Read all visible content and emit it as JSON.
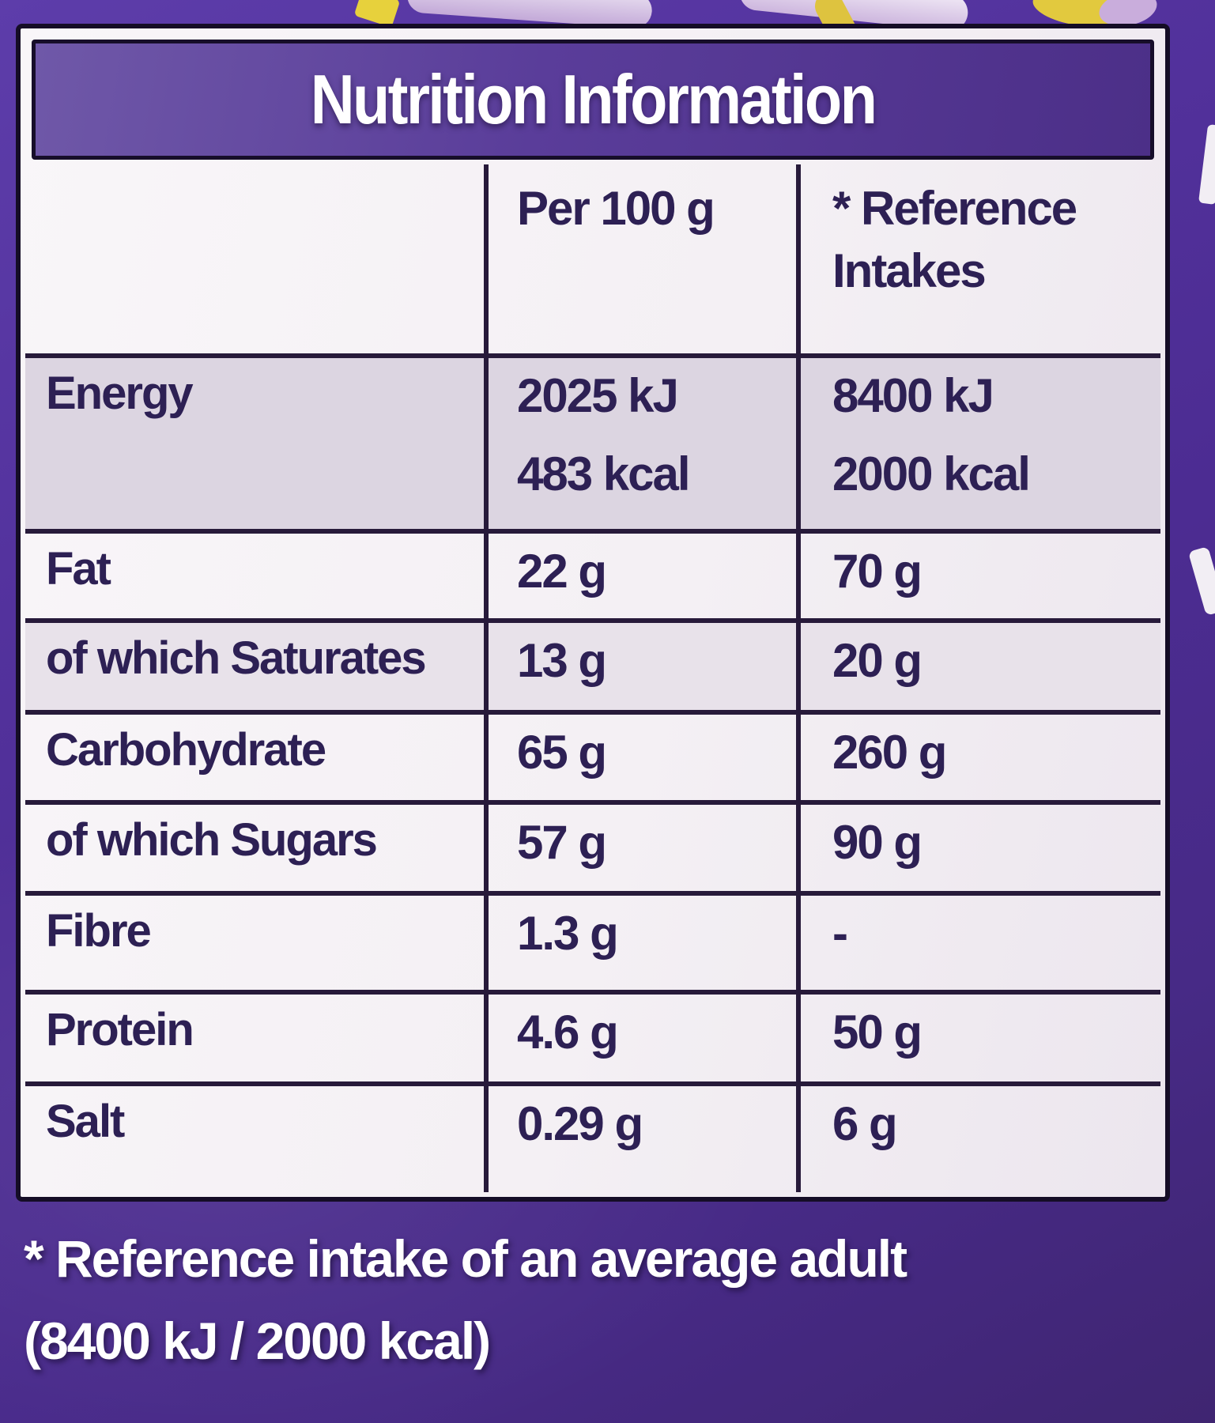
{
  "label": {
    "title": "Nutrition Information",
    "columns": {
      "per100": "Per 100 g",
      "reference": "* Reference Intakes"
    },
    "rows": [
      {
        "label": "Energy",
        "per100": [
          "2025 kJ",
          "483 kcal"
        ],
        "reference": [
          "8400 kJ",
          "2000 kcal"
        ],
        "shaded": true
      },
      {
        "label": "Fat",
        "per100": [
          "22 g"
        ],
        "reference": [
          "70 g"
        ],
        "shaded": false
      },
      {
        "label": "of which Saturates",
        "per100": [
          "13 g"
        ],
        "reference": [
          "20 g"
        ],
        "shaded": true
      },
      {
        "label": "Carbohydrate",
        "per100": [
          "65 g"
        ],
        "reference": [
          "260 g"
        ],
        "shaded": false
      },
      {
        "label": "of which Sugars",
        "per100": [
          "57 g"
        ],
        "reference": [
          "90 g"
        ],
        "shaded": false
      },
      {
        "label": "Fibre",
        "per100": [
          "1.3 g"
        ],
        "reference": [
          "-"
        ],
        "shaded": false
      },
      {
        "label": "Protein",
        "per100": [
          "4.6 g"
        ],
        "reference": [
          "50 g"
        ],
        "shaded": false
      },
      {
        "label": "Salt",
        "per100": [
          "0.29 g"
        ],
        "reference": [
          "6 g"
        ],
        "shaded": false
      }
    ],
    "footnote_line1": "* Reference intake of an average adult",
    "footnote_line2": "(8400 kJ / 2000 kcal)"
  },
  "colors": {
    "package_purple": "#4c2c92",
    "title_bar_purple": "#5a3d9a",
    "ink_purple": "#2d2054",
    "shaded_row": "#dcd5e1",
    "panel_white": "#f4f0f4",
    "grid_line": "#271a3a",
    "deco_yellow": "#e2c93e",
    "deco_lavender": "#c9addc"
  }
}
